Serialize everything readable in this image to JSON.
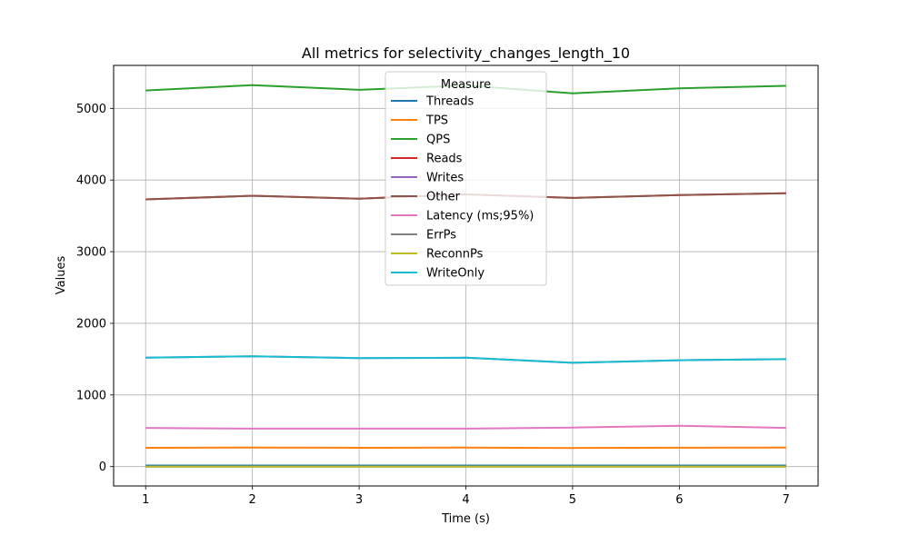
{
  "chart_data": {
    "type": "line",
    "title": "All metrics for selectivity_changes_length_10",
    "xlabel": "Time (s)",
    "ylabel": "Values",
    "x": [
      1,
      2,
      3,
      4,
      5,
      6,
      7
    ],
    "xlim": [
      0.7,
      7.3
    ],
    "ylim": [
      -270,
      5600
    ],
    "x_ticks": [
      1,
      2,
      3,
      4,
      5,
      6,
      7
    ],
    "y_ticks": [
      0,
      1000,
      2000,
      3000,
      4000,
      5000
    ],
    "grid": true,
    "legend": {
      "title": "Measure",
      "position": "upper center"
    },
    "series": [
      {
        "name": "Threads",
        "color": "#1f77b4",
        "values": [
          16,
          16,
          16,
          16,
          16,
          16,
          16
        ]
      },
      {
        "name": "TPS",
        "color": "#ff7f0e",
        "values": [
          262,
          266,
          263,
          266,
          260,
          264,
          266
        ]
      },
      {
        "name": "QPS",
        "color": "#2ca02c",
        "values": [
          5250,
          5325,
          5260,
          5320,
          5210,
          5280,
          5315
        ]
      },
      {
        "name": "Reads",
        "color": "#d62728",
        "values": [
          3730,
          3780,
          3740,
          3800,
          3750,
          3790,
          3815
        ]
      },
      {
        "name": "Writes",
        "color": "#9467bd",
        "values": [
          1520,
          1540,
          1515,
          1520,
          1450,
          1485,
          1500
        ]
      },
      {
        "name": "Other",
        "color": "#8c564b",
        "values": [
          3730,
          3780,
          3740,
          3800,
          3750,
          3790,
          3815
        ]
      },
      {
        "name": "Latency (ms;95%)",
        "color": "#e377c2",
        "values": [
          540,
          530,
          530,
          530,
          545,
          570,
          540
        ]
      },
      {
        "name": "ErrPs",
        "color": "#7f7f7f",
        "values": [
          0,
          0,
          0,
          0,
          0,
          0,
          0
        ]
      },
      {
        "name": "ReconnPs",
        "color": "#bcbd22",
        "values": [
          0,
          0,
          0,
          0,
          0,
          0,
          0
        ]
      },
      {
        "name": "WriteOnly",
        "color": "#17becf",
        "values": [
          1520,
          1540,
          1515,
          1520,
          1450,
          1485,
          1500
        ]
      }
    ]
  }
}
